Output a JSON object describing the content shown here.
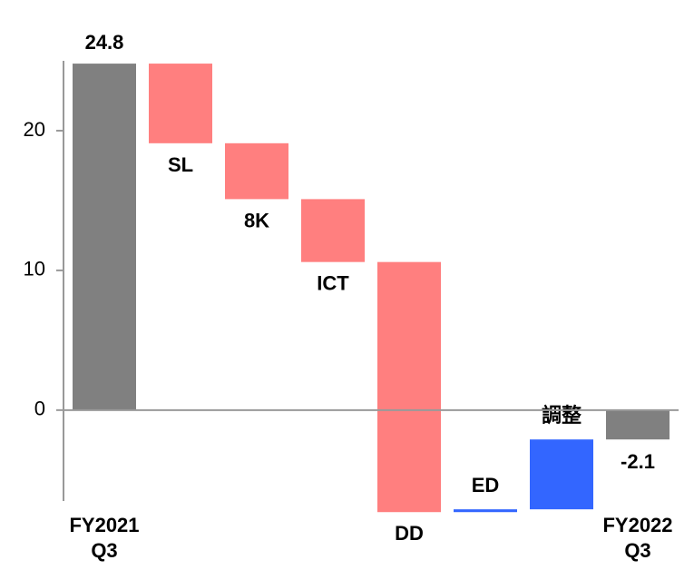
{
  "chart_data": {
    "type": "waterfall",
    "categories": [
      [
        "FY2021",
        "Q3"
      ],
      [
        "SL"
      ],
      [
        "8K"
      ],
      [
        "ICT"
      ],
      [
        "DD"
      ],
      [
        "ED"
      ],
      [
        "調整"
      ],
      [
        "FY2022",
        "Q3"
      ]
    ],
    "measure": [
      "total",
      "relative",
      "relative",
      "relative",
      "relative",
      "relative",
      "relative",
      "total"
    ],
    "values": [
      24.8,
      -5.7,
      -4.0,
      -4.5,
      -17.9,
      0.2,
      5.0,
      -2.1
    ],
    "colors": {
      "total": "#808080",
      "decrease": "#ff7f7f",
      "increase": "#3366ff"
    },
    "ylim": [
      -8,
      25
    ],
    "yticks": [
      0,
      10,
      20
    ]
  }
}
